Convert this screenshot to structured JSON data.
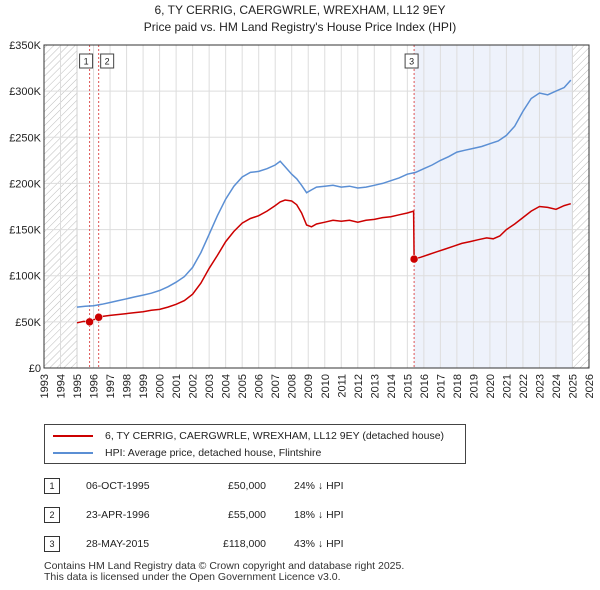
{
  "chart_data": {
    "type": "line",
    "title": "6, TY CERRIG, CAERGWRLE, WREXHAM, LL12 9EY",
    "subtitle": "Price paid vs. HM Land Registry's House Price Index (HPI)",
    "xlim": [
      1993,
      2026
    ],
    "ylim": [
      0,
      350000
    ],
    "x_ticks": [
      1993,
      1994,
      1995,
      1996,
      1997,
      1998,
      1999,
      2000,
      2001,
      2002,
      2003,
      2004,
      2005,
      2006,
      2007,
      2008,
      2009,
      2010,
      2011,
      2012,
      2013,
      2014,
      2015,
      2016,
      2017,
      2018,
      2019,
      2020,
      2021,
      2022,
      2023,
      2024,
      2025,
      2026
    ],
    "y_ticks": [
      0,
      50000,
      100000,
      150000,
      200000,
      250000,
      300000,
      350000
    ],
    "y_tick_labels": [
      "£0",
      "£50K",
      "£100K",
      "£150K",
      "£200K",
      "£250K",
      "£300K",
      "£350K"
    ],
    "hatched_regions": [
      [
        1993,
        1995.0
      ],
      [
        2025.0,
        2026
      ]
    ],
    "shaded_region": [
      2015.41,
      2025.0
    ],
    "series": [
      {
        "name": "6, TY CERRIG, CAERGWRLE, WREXHAM, LL12 9EY (detached house)",
        "color": "#cc0000",
        "x": [
          1995.0,
          1995.4,
          1995.76,
          1996.31,
          1996.6,
          1997.0,
          1997.5,
          1998.0,
          1998.5,
          1999.0,
          1999.5,
          2000.0,
          2000.5,
          2001.0,
          2001.5,
          2002.0,
          2002.5,
          2003.0,
          2003.5,
          2004.0,
          2004.5,
          2005.0,
          2005.5,
          2006.0,
          2006.5,
          2007.0,
          2007.3,
          2007.6,
          2008.0,
          2008.3,
          2008.6,
          2008.9,
          2009.2,
          2009.5,
          2010.0,
          2010.5,
          2011.0,
          2011.5,
          2012.0,
          2012.5,
          2013.0,
          2013.5,
          2014.0,
          2014.5,
          2015.0,
          2015.38,
          2015.41,
          2015.8,
          2016.3,
          2016.8,
          2017.3,
          2017.8,
          2018.3,
          2018.8,
          2019.3,
          2019.8,
          2020.2,
          2020.6,
          2021.0,
          2021.5,
          2022.0,
          2022.5,
          2023.0,
          2023.5,
          2024.0,
          2024.5,
          2024.9
        ],
        "y": [
          49000,
          50500,
          50000,
          55000,
          56000,
          57000,
          58000,
          59000,
          60000,
          61000,
          62500,
          63500,
          66000,
          69000,
          73000,
          80000,
          92000,
          108000,
          122000,
          137000,
          148000,
          157000,
          162000,
          165000,
          170000,
          176000,
          180000,
          182000,
          181000,
          177000,
          168000,
          155000,
          153000,
          156000,
          158000,
          160000,
          159000,
          160000,
          158000,
          160000,
          161000,
          163000,
          164000,
          166000,
          168000,
          170000,
          118000,
          120000,
          123000,
          126000,
          129000,
          132000,
          135000,
          137000,
          139000,
          141000,
          140000,
          143000,
          150000,
          156000,
          163000,
          170000,
          175000,
          174000,
          172000,
          176000,
          178000
        ]
      },
      {
        "name": "HPI: Average price, detached house, Flintshire",
        "color": "#5b8fd4",
        "x": [
          1995.0,
          1995.5,
          1996.0,
          1996.5,
          1997.0,
          1997.5,
          1998.0,
          1998.5,
          1999.0,
          1999.5,
          2000.0,
          2000.5,
          2001.0,
          2001.5,
          2002.0,
          2002.5,
          2003.0,
          2003.5,
          2004.0,
          2004.5,
          2005.0,
          2005.5,
          2006.0,
          2006.5,
          2007.0,
          2007.3,
          2007.6,
          2008.0,
          2008.3,
          2008.6,
          2008.9,
          2009.2,
          2009.5,
          2010.0,
          2010.5,
          2011.0,
          2011.5,
          2012.0,
          2012.5,
          2013.0,
          2013.5,
          2014.0,
          2014.5,
          2015.0,
          2015.5,
          2016.0,
          2016.5,
          2017.0,
          2017.5,
          2018.0,
          2018.5,
          2019.0,
          2019.5,
          2020.0,
          2020.5,
          2021.0,
          2021.5,
          2022.0,
          2022.5,
          2023.0,
          2023.5,
          2024.0,
          2024.5,
          2024.9
        ],
        "y": [
          66000,
          67000,
          67500,
          69000,
          71000,
          73000,
          75000,
          77000,
          79000,
          81000,
          84000,
          88000,
          93000,
          99000,
          109000,
          125000,
          145000,
          165000,
          183000,
          197000,
          207000,
          212000,
          213000,
          216000,
          220000,
          224000,
          218000,
          210000,
          205000,
          198000,
          190000,
          193000,
          196000,
          197000,
          198000,
          196000,
          197000,
          195000,
          196000,
          198000,
          200000,
          203000,
          206000,
          210000,
          212000,
          216000,
          220000,
          225000,
          229000,
          234000,
          236000,
          238000,
          240000,
          243000,
          246000,
          252000,
          262000,
          278000,
          292000,
          298000,
          296000,
          300000,
          304000,
          312000
        ]
      }
    ],
    "transactions": [
      {
        "label": "1",
        "year": 1995.76,
        "price": 50000
      },
      {
        "label": "2",
        "year": 1996.31,
        "price": 55000
      },
      {
        "label": "3",
        "year": 2015.41,
        "price": 118000
      }
    ]
  },
  "legend": {
    "property": "6, TY CERRIG, CAERGWRLE, WREXHAM, LL12 9EY (detached house)",
    "hpi": "HPI: Average price, detached house, Flintshire",
    "property_color": "#cc0000",
    "hpi_color": "#5b8fd4"
  },
  "table": [
    {
      "num": "1",
      "date": "06-OCT-1995",
      "price": "£50,000",
      "hpi": "24% ↓ HPI"
    },
    {
      "num": "2",
      "date": "23-APR-1996",
      "price": "£55,000",
      "hpi": "18% ↓ HPI"
    },
    {
      "num": "3",
      "date": "28-MAY-2015",
      "price": "£118,000",
      "hpi": "43% ↓ HPI"
    }
  ],
  "footer": {
    "line1": "Contains HM Land Registry data © Crown copyright and database right 2025.",
    "line2": "This data is licensed under the Open Government Licence v3.0."
  }
}
